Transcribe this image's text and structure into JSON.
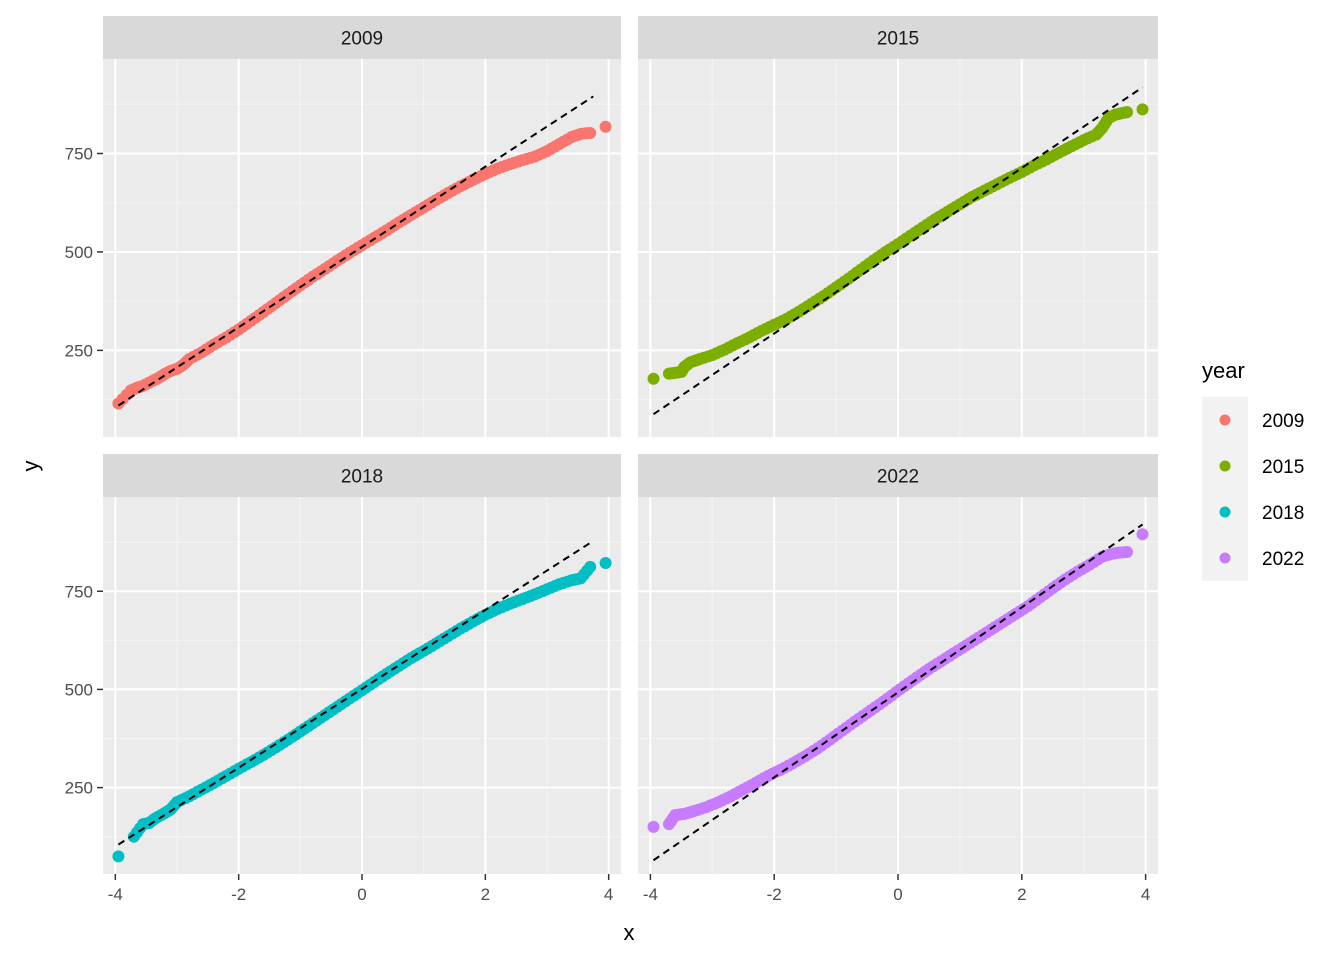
{
  "chart_data": {
    "type": "scatter",
    "subtype": "qq-plot-faceted",
    "xlabel": "x",
    "ylabel": "y",
    "xlim": [
      -4.2,
      4.2
    ],
    "ylim": [
      30,
      990
    ],
    "x_ticks": [
      -4,
      -2,
      0,
      2,
      4
    ],
    "x_tick_labels": [
      "-4",
      "-2",
      "0",
      "2",
      "4"
    ],
    "y_ticks": [
      250,
      500,
      750
    ],
    "y_tick_labels": [
      "250",
      "500",
      "750"
    ],
    "grid": true,
    "legend": {
      "title": "year",
      "position": "right",
      "entries": [
        {
          "label": "2009",
          "color": "#F8766D"
        },
        {
          "label": "2015",
          "color": "#7CAE00"
        },
        {
          "label": "2018",
          "color": "#00BFC4"
        },
        {
          "label": "2022",
          "color": "#C77CFF"
        }
      ]
    },
    "panels": [
      {
        "strip": "2009",
        "color": "#F8766D",
        "ref_line": {
          "x": [
            -3.95,
            3.75
          ],
          "y": [
            110,
            895
          ]
        },
        "points": [
          [
            -3.95,
            115
          ],
          [
            -3.75,
            148
          ],
          [
            -3.65,
            155
          ],
          [
            -3.55,
            160
          ],
          [
            -3.4,
            172
          ],
          [
            -3.3,
            180
          ],
          [
            -3.2,
            190
          ],
          [
            -3.1,
            198
          ],
          [
            -3.0,
            203
          ],
          [
            -2.9,
            213
          ],
          [
            -2.8,
            228
          ],
          [
            -2.6,
            245
          ],
          [
            -2.4,
            265
          ],
          [
            -2.2,
            283
          ],
          [
            -2.0,
            303
          ],
          [
            -1.8,
            325
          ],
          [
            -1.6,
            347
          ],
          [
            -1.4,
            370
          ],
          [
            -1.2,
            393
          ],
          [
            -1.0,
            415
          ],
          [
            -0.8,
            437
          ],
          [
            -0.6,
            457
          ],
          [
            -0.4,
            478
          ],
          [
            -0.2,
            498
          ],
          [
            0.0,
            517
          ],
          [
            0.2,
            536
          ],
          [
            0.4,
            555
          ],
          [
            0.6,
            575
          ],
          [
            0.8,
            594
          ],
          [
            1.0,
            613
          ],
          [
            1.2,
            632
          ],
          [
            1.4,
            650
          ],
          [
            1.6,
            667
          ],
          [
            1.8,
            683
          ],
          [
            2.0,
            698
          ],
          [
            2.2,
            712
          ],
          [
            2.4,
            723
          ],
          [
            2.6,
            733
          ],
          [
            2.8,
            742
          ],
          [
            3.0,
            756
          ],
          [
            3.2,
            774
          ],
          [
            3.4,
            792
          ],
          [
            3.55,
            800
          ],
          [
            3.7,
            802
          ],
          [
            3.95,
            818
          ]
        ]
      },
      {
        "strip": "2015",
        "color": "#7CAE00",
        "ref_line": {
          "x": [
            -3.95,
            3.95
          ],
          "y": [
            88,
            918
          ]
        },
        "points": [
          [
            -3.95,
            178
          ],
          [
            -3.7,
            191
          ],
          [
            -3.6,
            193
          ],
          [
            -3.5,
            195
          ],
          [
            -3.45,
            208
          ],
          [
            -3.35,
            220
          ],
          [
            -3.2,
            228
          ],
          [
            -3.0,
            238
          ],
          [
            -2.8,
            252
          ],
          [
            -2.6,
            268
          ],
          [
            -2.4,
            283
          ],
          [
            -2.2,
            300
          ],
          [
            -2.0,
            315
          ],
          [
            -1.8,
            330
          ],
          [
            -1.6,
            348
          ],
          [
            -1.4,
            368
          ],
          [
            -1.2,
            388
          ],
          [
            -1.0,
            410
          ],
          [
            -0.8,
            432
          ],
          [
            -0.6,
            455
          ],
          [
            -0.4,
            478
          ],
          [
            -0.2,
            500
          ],
          [
            0.0,
            520
          ],
          [
            0.2,
            541
          ],
          [
            0.4,
            562
          ],
          [
            0.6,
            583
          ],
          [
            0.8,
            602
          ],
          [
            1.0,
            621
          ],
          [
            1.2,
            640
          ],
          [
            1.4,
            656
          ],
          [
            1.6,
            672
          ],
          [
            1.8,
            688
          ],
          [
            2.0,
            703
          ],
          [
            2.2,
            720
          ],
          [
            2.4,
            735
          ],
          [
            2.6,
            752
          ],
          [
            2.8,
            768
          ],
          [
            3.0,
            784
          ],
          [
            3.2,
            798
          ],
          [
            3.3,
            815
          ],
          [
            3.4,
            840
          ],
          [
            3.5,
            848
          ],
          [
            3.6,
            852
          ],
          [
            3.7,
            855
          ],
          [
            3.95,
            862
          ]
        ]
      },
      {
        "strip": "2018",
        "color": "#00BFC4",
        "ref_line": {
          "x": [
            -3.95,
            3.75
          ],
          "y": [
            105,
            878
          ]
        },
        "points": [
          [
            -3.95,
            75
          ],
          [
            -3.7,
            125
          ],
          [
            -3.55,
            157
          ],
          [
            -3.45,
            160
          ],
          [
            -3.35,
            172
          ],
          [
            -3.2,
            185
          ],
          [
            -3.1,
            195
          ],
          [
            -3.0,
            213
          ],
          [
            -2.8,
            228
          ],
          [
            -2.6,
            245
          ],
          [
            -2.4,
            262
          ],
          [
            -2.2,
            280
          ],
          [
            -2.0,
            298
          ],
          [
            -1.8,
            315
          ],
          [
            -1.6,
            333
          ],
          [
            -1.4,
            352
          ],
          [
            -1.2,
            372
          ],
          [
            -1.0,
            393
          ],
          [
            -0.8,
            414
          ],
          [
            -0.6,
            435
          ],
          [
            -0.4,
            456
          ],
          [
            -0.2,
            477
          ],
          [
            0.0,
            498
          ],
          [
            0.2,
            519
          ],
          [
            0.4,
            540
          ],
          [
            0.6,
            560
          ],
          [
            0.8,
            580
          ],
          [
            1.0,
            598
          ],
          [
            1.2,
            617
          ],
          [
            1.4,
            636
          ],
          [
            1.6,
            655
          ],
          [
            1.8,
            673
          ],
          [
            2.0,
            690
          ],
          [
            2.2,
            705
          ],
          [
            2.4,
            718
          ],
          [
            2.6,
            730
          ],
          [
            2.8,
            742
          ],
          [
            3.0,
            755
          ],
          [
            3.2,
            768
          ],
          [
            3.4,
            778
          ],
          [
            3.55,
            783
          ],
          [
            3.7,
            812
          ],
          [
            3.95,
            822
          ]
        ]
      },
      {
        "strip": "2022",
        "color": "#C77CFF",
        "ref_line": {
          "x": [
            -3.95,
            3.95
          ],
          "y": [
            65,
            920
          ]
        },
        "points": [
          [
            -3.95,
            150
          ],
          [
            -3.7,
            157
          ],
          [
            -3.6,
            180
          ],
          [
            -3.45,
            183
          ],
          [
            -3.3,
            190
          ],
          [
            -3.1,
            200
          ],
          [
            -2.9,
            213
          ],
          [
            -2.7,
            228
          ],
          [
            -2.5,
            245
          ],
          [
            -2.3,
            262
          ],
          [
            -2.1,
            280
          ],
          [
            -1.9,
            295
          ],
          [
            -1.7,
            312
          ],
          [
            -1.5,
            330
          ],
          [
            -1.3,
            350
          ],
          [
            -1.1,
            372
          ],
          [
            -0.9,
            395
          ],
          [
            -0.7,
            418
          ],
          [
            -0.5,
            440
          ],
          [
            -0.3,
            462
          ],
          [
            -0.1,
            485
          ],
          [
            0.1,
            508
          ],
          [
            0.3,
            530
          ],
          [
            0.5,
            552
          ],
          [
            0.7,
            572
          ],
          [
            0.9,
            592
          ],
          [
            1.1,
            612
          ],
          [
            1.3,
            632
          ],
          [
            1.5,
            652
          ],
          [
            1.7,
            672
          ],
          [
            1.9,
            692
          ],
          [
            2.1,
            712
          ],
          [
            2.3,
            735
          ],
          [
            2.5,
            758
          ],
          [
            2.7,
            780
          ],
          [
            2.9,
            800
          ],
          [
            3.1,
            818
          ],
          [
            3.3,
            838
          ],
          [
            3.45,
            845
          ],
          [
            3.55,
            848
          ],
          [
            3.7,
            850
          ],
          [
            3.95,
            895
          ]
        ]
      }
    ]
  }
}
